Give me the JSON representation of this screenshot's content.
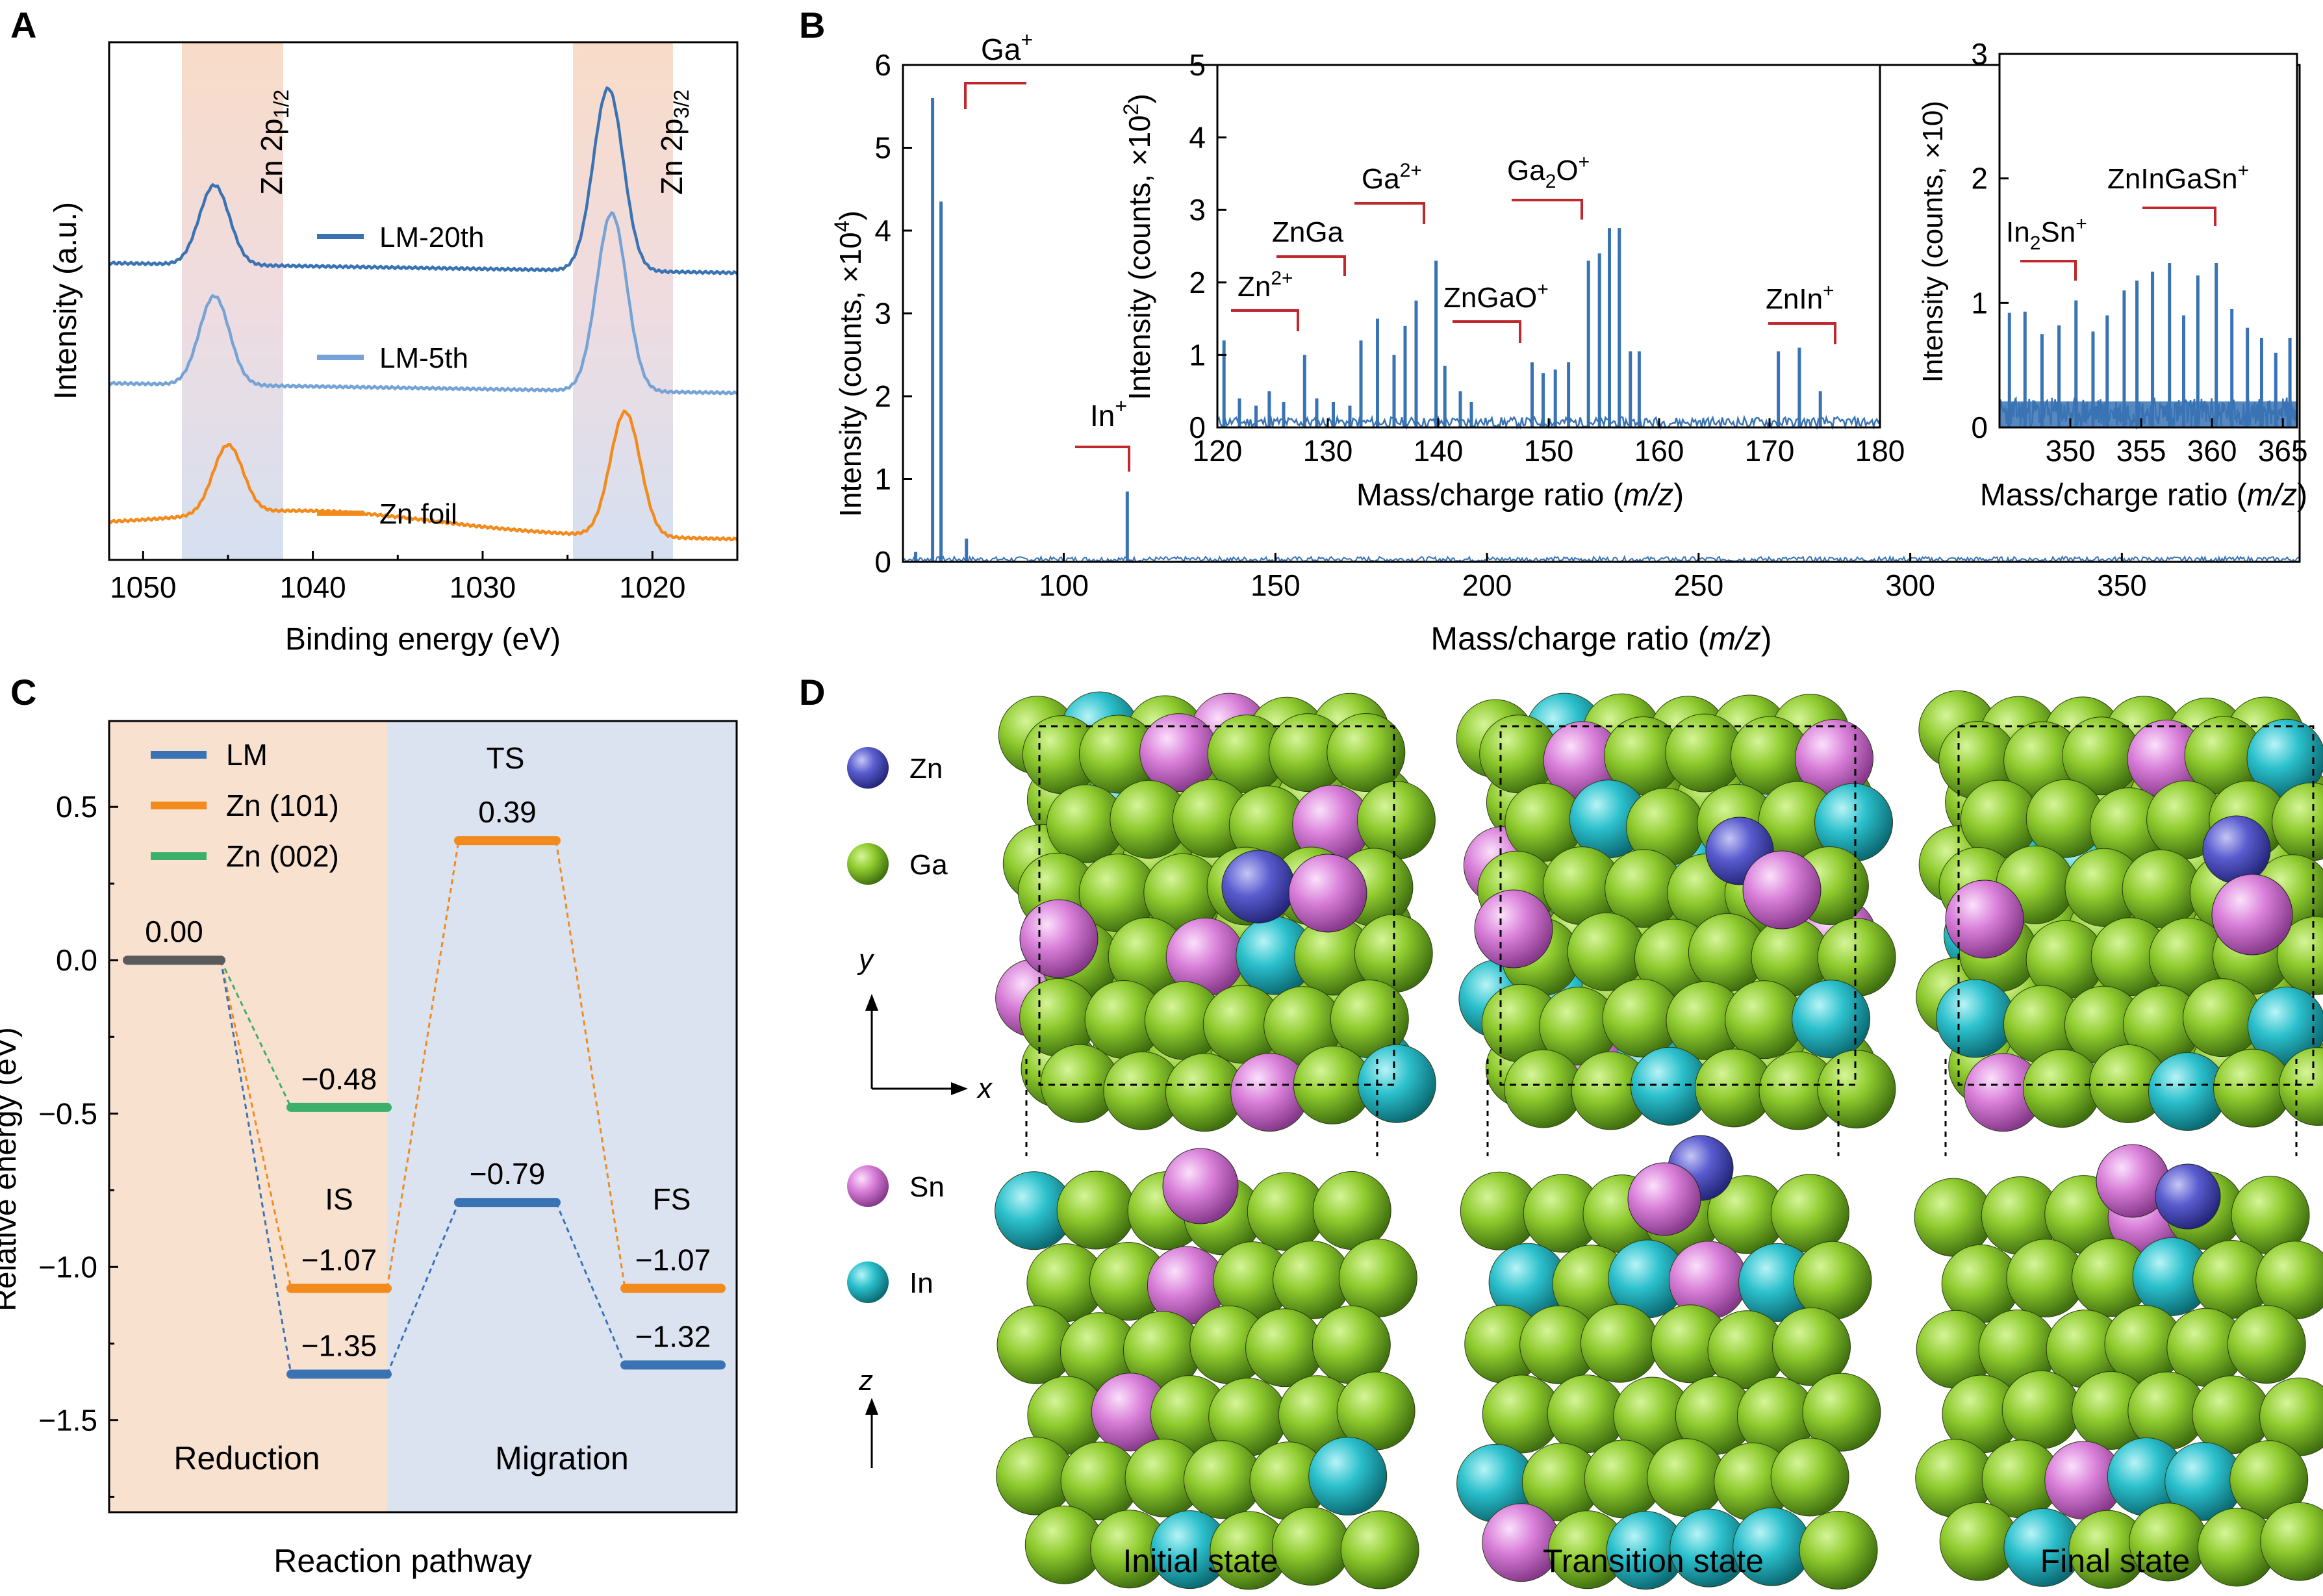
{
  "panels": {
    "a": "A",
    "b": "B",
    "c": "C",
    "d": "D"
  },
  "colors": {
    "blue": "#3a73b4",
    "lightblue": "#76a3d6",
    "orange": "#f28a1c",
    "green": "#3cb06a",
    "gray": "#5a5a5a",
    "red": "#c0282d",
    "peach": "#f9e1d0",
    "bluebg": "#dbe3f1",
    "ga": "#8fcb2e",
    "in": "#2bc0cc",
    "sn": "#d97fd9",
    "zn": "#5a5ccf"
  },
  "chart_data": [
    {
      "id": "A",
      "type": "line",
      "xlabel": "Binding energy (eV)",
      "ylabel": "Intensity (a.u.)",
      "xlim": [
        1052,
        1015
      ],
      "x_reversed": true,
      "xticks": [
        "1050",
        "1040",
        "1030",
        "1020"
      ],
      "annotations": [
        "Zn 2p1/2",
        "Zn 2p3/2"
      ],
      "series": [
        {
          "name": "LM-20th",
          "peaks": [
            {
              "x": 1045.8,
              "h": 0.34
            },
            {
              "x": 1022.6,
              "h": 0.78
            }
          ]
        },
        {
          "name": "LM-5th",
          "peaks": [
            {
              "x": 1045.8,
              "h": 0.36
            },
            {
              "x": 1022.4,
              "h": 0.72
            }
          ]
        },
        {
          "name": "Zn foil",
          "peaks": [
            {
              "x": 1045.0,
              "h": 0.32
            },
            {
              "x": 1021.6,
              "h": 0.58
            }
          ]
        }
      ]
    },
    {
      "id": "B",
      "type": "bar",
      "xlabel_main": "Mass/charge ratio",
      "xlabel_italic": "m/z",
      "ylabel_main": "Intensity (counts, ×10",
      "ylabel_exp": "4",
      "xlim": [
        62,
        392
      ],
      "ylim": [
        0,
        6
      ],
      "xticks": [
        "100",
        "150",
        "200",
        "250",
        "300",
        "350"
      ],
      "yticks": [
        "0",
        "1",
        "2",
        "3",
        "4",
        "5",
        "6"
      ],
      "peaks": [
        {
          "x": 69,
          "y": 5.6
        },
        {
          "x": 71,
          "y": 4.35
        },
        {
          "x": 115,
          "y": 0.85
        },
        {
          "x": 77,
          "y": 0.28
        },
        {
          "x": 65,
          "y": 0.12
        }
      ],
      "labels": [
        {
          "text": "Ga",
          "sup": "+"
        },
        {
          "text": "In",
          "sup": "+"
        }
      ],
      "inset1": {
        "ylabel_main": "Intensity (counts, ×10",
        "ylabel_exp": "2",
        "xlabel_main": "Mass/charge ratio",
        "xlabel_italic": "m/z",
        "xlim": [
          120,
          180
        ],
        "ylim": [
          0,
          5
        ],
        "xticks": [
          "120",
          "130",
          "140",
          "150",
          "160",
          "170",
          "180"
        ],
        "yticks": [
          "0",
          "1",
          "2",
          "3",
          "4",
          "5"
        ],
        "peaks": [
          {
            "x": 120.6,
            "y": 1.2
          },
          {
            "x": 122,
            "y": 0.4
          },
          {
            "x": 123.5,
            "y": 0.3
          },
          {
            "x": 124.7,
            "y": 0.5
          },
          {
            "x": 126,
            "y": 0.35
          },
          {
            "x": 127.9,
            "y": 1.0
          },
          {
            "x": 129,
            "y": 0.4
          },
          {
            "x": 130.5,
            "y": 0.35
          },
          {
            "x": 132,
            "y": 0.3
          },
          {
            "x": 133,
            "y": 1.2
          },
          {
            "x": 134.5,
            "y": 1.5
          },
          {
            "x": 136,
            "y": 1.0
          },
          {
            "x": 137,
            "y": 1.4
          },
          {
            "x": 138,
            "y": 1.75
          },
          {
            "x": 139.8,
            "y": 2.3
          },
          {
            "x": 140.6,
            "y": 0.85
          },
          {
            "x": 142,
            "y": 0.5
          },
          {
            "x": 143,
            "y": 0.35
          },
          {
            "x": 148.5,
            "y": 0.9
          },
          {
            "x": 149.5,
            "y": 0.75
          },
          {
            "x": 150.6,
            "y": 0.8
          },
          {
            "x": 151.8,
            "y": 0.9
          },
          {
            "x": 153.6,
            "y": 2.3
          },
          {
            "x": 154.6,
            "y": 2.4
          },
          {
            "x": 155.5,
            "y": 2.75
          },
          {
            "x": 156.4,
            "y": 2.75
          },
          {
            "x": 157.4,
            "y": 1.05
          },
          {
            "x": 158.2,
            "y": 1.05
          },
          {
            "x": 170.8,
            "y": 1.05
          },
          {
            "x": 172.7,
            "y": 1.1
          },
          {
            "x": 174.6,
            "y": 0.5
          }
        ],
        "labels": [
          {
            "text": "Zn",
            "sup": "2+"
          },
          {
            "text": "ZnGa",
            "sup": ""
          },
          {
            "text": "Ga",
            "sup": "2+"
          },
          {
            "text": "ZnGaO",
            "sup": "+"
          },
          {
            "text": "Ga",
            "sub": "2",
            "tail": "O",
            "sup": "+"
          },
          {
            "text": "ZnIn",
            "sup": "+"
          }
        ]
      },
      "inset2": {
        "ylabel": "Intensity (counts, ×10)",
        "xlabel_main": "Mass/charge ratio",
        "xlabel_italic": "m/z",
        "xlim": [
          345,
          366
        ],
        "ylim": [
          0,
          3
        ],
        "xticks": [
          "350",
          "355",
          "360",
          "365"
        ],
        "yticks": [
          "0",
          "1",
          "2",
          "3"
        ],
        "peaks": [
          {
            "x": 345.7,
            "y": 0.92
          },
          {
            "x": 346.8,
            "y": 0.93
          },
          {
            "x": 348,
            "y": 0.75
          },
          {
            "x": 349.2,
            "y": 0.82
          },
          {
            "x": 350.4,
            "y": 1.02
          },
          {
            "x": 351.6,
            "y": 0.77
          },
          {
            "x": 352.6,
            "y": 0.9
          },
          {
            "x": 353.8,
            "y": 1.1
          },
          {
            "x": 354.7,
            "y": 1.18
          },
          {
            "x": 355.8,
            "y": 1.25
          },
          {
            "x": 357,
            "y": 1.32
          },
          {
            "x": 358,
            "y": 0.9
          },
          {
            "x": 359,
            "y": 1.22
          },
          {
            "x": 360.3,
            "y": 1.32
          },
          {
            "x": 361.4,
            "y": 0.95
          },
          {
            "x": 362.5,
            "y": 0.8
          },
          {
            "x": 363.5,
            "y": 0.72
          },
          {
            "x": 364.5,
            "y": 0.6
          },
          {
            "x": 365.5,
            "y": 0.72
          }
        ],
        "labels": [
          {
            "text": "In",
            "sub": "2",
            "tail": "Sn",
            "sup": "+"
          },
          {
            "text": "ZnInGaSn",
            "sup": "+"
          }
        ]
      }
    },
    {
      "id": "C",
      "type": "line",
      "xlabel": "Reaction pathway",
      "ylabel": "Relative energy (eV)",
      "ylim": [
        -1.8,
        0.78
      ],
      "yticks": [
        "0.5",
        "0.0",
        "−0.5",
        "−1.0",
        "−1.5"
      ],
      "regions": [
        "Reduction",
        "Migration"
      ],
      "states": [
        "IS",
        "TS",
        "FS"
      ],
      "legend": [
        "LM",
        "Zn (101)",
        "Zn (002)"
      ],
      "levels": [
        {
          "series": "start",
          "y": 0.0,
          "label": "0.00"
        },
        {
          "series": "Zn (002)",
          "y": -0.48,
          "label": "−0.48"
        },
        {
          "series": "Zn (101)",
          "y": -1.07,
          "label": "−1.07"
        },
        {
          "series": "LM",
          "y": -1.35,
          "label": "−1.35"
        },
        {
          "series": "Zn (101)",
          "y": 0.39,
          "label": "0.39"
        },
        {
          "series": "LM",
          "y": -0.79,
          "label": "−0.79"
        },
        {
          "series": "Zn (101)",
          "y": -1.07,
          "label": "−1.07"
        },
        {
          "series": "LM",
          "y": -1.32,
          "label": "−1.32"
        }
      ]
    }
  ],
  "panel_d": {
    "legend": [
      "Zn",
      "Ga",
      "Sn",
      "In"
    ],
    "axes_top": [
      "y",
      "x"
    ],
    "axes_bottom": [
      "z"
    ],
    "captions": [
      "Initial state",
      "Transition state",
      "Final state"
    ]
  }
}
